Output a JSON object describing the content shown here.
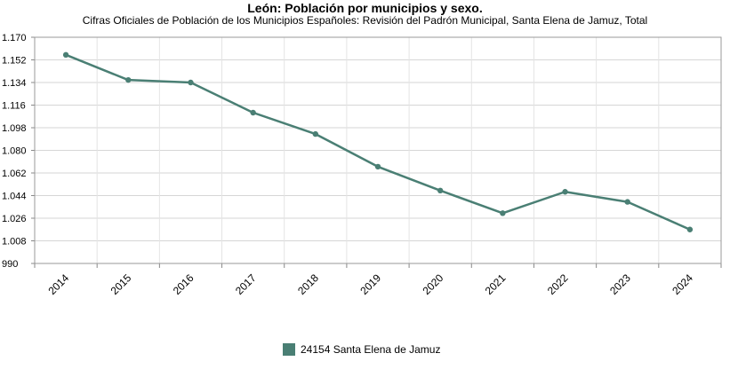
{
  "chart_data": {
    "type": "line",
    "title": "León: Población por municipios y sexo.",
    "subtitle": "Cifras Oficiales de Población de los Municipios Españoles: Revisión del Padrón Municipal, Santa Elena de Jamuz, Total",
    "categories": [
      "2014",
      "2015",
      "2016",
      "2017",
      "2018",
      "2019",
      "2020",
      "2021",
      "2022",
      "2023",
      "2024"
    ],
    "series": [
      {
        "name": "24154 Santa Elena de Jamuz",
        "color": "#4a7f74",
        "values": [
          1156,
          1136,
          1134,
          1110,
          1093,
          1067,
          1048,
          1030,
          1047,
          1039,
          1017
        ]
      }
    ],
    "ylim": [
      990,
      1170
    ],
    "yticks": [
      "990",
      "1.008",
      "1.026",
      "1.044",
      "1.062",
      "1.080",
      "1.098",
      "1.116",
      "1.134",
      "1.152",
      "1.170"
    ],
    "ytick_values": [
      990,
      1008,
      1026,
      1044,
      1062,
      1080,
      1098,
      1116,
      1134,
      1152,
      1170
    ],
    "grid": true,
    "legend": "bottom"
  }
}
